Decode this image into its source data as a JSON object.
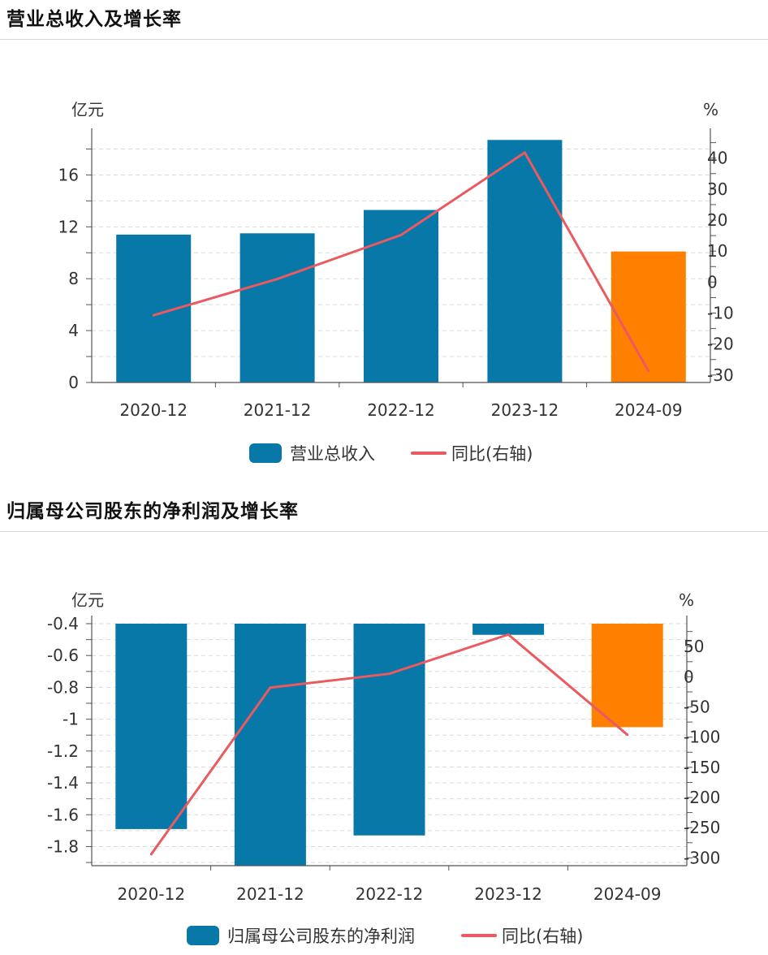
{
  "colors": {
    "bar": "#0878a8",
    "bar_highlight": "#ff8000",
    "line": "#ea5a60",
    "grid": "#d9d9d9",
    "axis": "#555555"
  },
  "charts": [
    {
      "title": "营业总收入及增长率",
      "chart_data": {
        "type": "bar",
        "categories": [
          "2020-12",
          "2021-12",
          "2022-12",
          "2023-12",
          "2024-09"
        ],
        "series": [
          {
            "name": "营业总收入",
            "type": "bar",
            "axis": "left",
            "values": [
              11.4,
              11.5,
              13.3,
              18.7,
              10.1
            ]
          },
          {
            "name": "同比(右轴)",
            "type": "line",
            "axis": "right",
            "values": [
              -10.7,
              1.0,
              15.2,
              41.8,
              -28.7
            ]
          }
        ],
        "highlight_index": 4,
        "y_left": {
          "unit": "亿元",
          "range": [
            0,
            18.97
          ],
          "ticks": [
            0,
            4,
            8,
            12,
            16
          ]
        },
        "y_right": {
          "unit": "%",
          "range": [
            -32.4,
            47
          ],
          "ticks": [
            -30,
            -20,
            -10,
            0,
            10,
            20,
            30,
            40
          ]
        },
        "grid": true,
        "legend": "bottom-center"
      }
    },
    {
      "title": "归属母公司股东的净利润及增长率",
      "chart_data": {
        "type": "bar",
        "categories": [
          "2020-12",
          "2021-12",
          "2022-12",
          "2023-12",
          "2024-09"
        ],
        "series": [
          {
            "name": "归属母公司股东的净利润",
            "type": "bar",
            "axis": "left",
            "values": [
              -1.69,
              -1.92,
              -1.73,
              -0.47,
              -1.05
            ]
          },
          {
            "name": "同比(右轴)",
            "type": "line",
            "axis": "right",
            "values": [
              -294,
              -18,
              5,
              70,
              -96
            ]
          }
        ],
        "highlight_index": 4,
        "y_left": {
          "unit": "亿元",
          "range": [
            -1.92,
            -0.4
          ],
          "ticks": [
            -1.8,
            -1.6,
            -1.4,
            -1.2,
            -1,
            -0.8,
            -0.6,
            -0.4
          ]
        },
        "y_right": {
          "unit": "%",
          "range": [
            -313,
            88
          ],
          "ticks": [
            -300,
            -250,
            -200,
            -150,
            -100,
            -50,
            0,
            50
          ]
        },
        "grid": true,
        "legend": "bottom-center"
      }
    }
  ]
}
